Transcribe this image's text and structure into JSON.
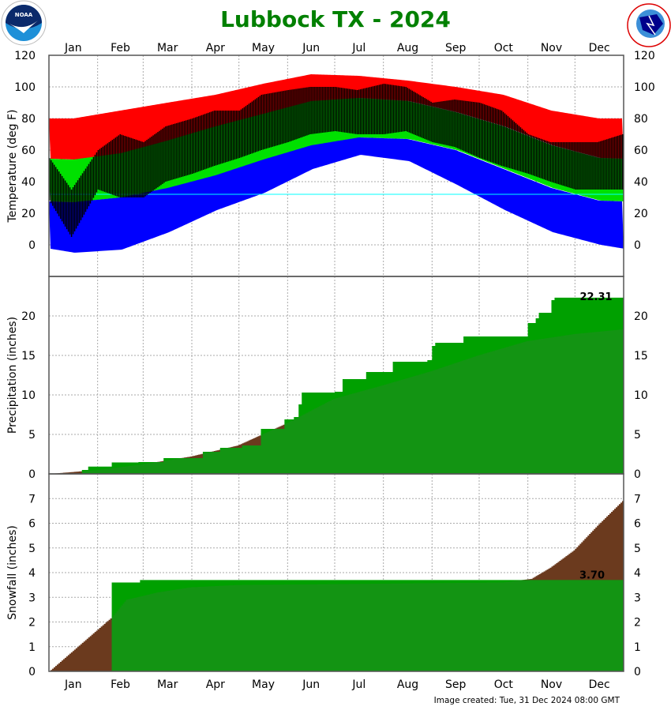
{
  "title": "Lubbock TX - 2024",
  "footer": "Image created: Tue, 31 Dec 2024 08:00 GMT",
  "logos": {
    "left": "NOAA",
    "right": "NATIONAL WEATHER SERVICE"
  },
  "colors": {
    "title": "#008000",
    "record_high_band": "#ff0000",
    "normal_band": "#00e000",
    "record_low_band": "#0000ff",
    "observed_temp": "#000000",
    "freezing_line": "#00ffff",
    "observed_accum": "#00a000",
    "normal_accum_above_observed": "#6b3a1e",
    "normal_accum_below_observed": "#228b22"
  },
  "months": [
    "Jan",
    "Feb",
    "Mar",
    "Apr",
    "May",
    "Jun",
    "Jul",
    "Aug",
    "Sep",
    "Oct",
    "Nov",
    "Dec"
  ],
  "chart_data": [
    {
      "type": "bar",
      "ylabel": "Temperature (deg F)",
      "ylim": [
        -20,
        120
      ],
      "yticks": [
        0,
        20,
        40,
        60,
        80,
        100,
        120
      ],
      "grid": true,
      "x_unit": "day of year 2024",
      "freezing_line": 32,
      "record_high_monthly": [
        80,
        85,
        90,
        95,
        102,
        108,
        107,
        104,
        100,
        95,
        85,
        80
      ],
      "normal_high_monthly": [
        54,
        58,
        66,
        75,
        83,
        91,
        93,
        91,
        84,
        75,
        63,
        55
      ],
      "normal_low_monthly": [
        27,
        30,
        36,
        44,
        54,
        63,
        68,
        67,
        60,
        48,
        36,
        28
      ],
      "record_low_monthly": [
        -5,
        -3,
        8,
        22,
        33,
        48,
        57,
        53,
        38,
        22,
        8,
        0
      ],
      "observed_semimonthly": {
        "dates": [
          "Jan 1",
          "Jan 15",
          "Feb 1",
          "Feb 15",
          "Mar 1",
          "Mar 15",
          "Apr 1",
          "Apr 15",
          "May 1",
          "May 15",
          "Jun 1",
          "Jun 15",
          "Jul 1",
          "Jul 15",
          "Aug 1",
          "Aug 15",
          "Sep 1",
          "Sep 15",
          "Oct 1",
          "Oct 15",
          "Nov 1",
          "Nov 15",
          "Dec 1",
          "Dec 15",
          "Dec 31"
        ],
        "high": [
          55,
          35,
          60,
          70,
          65,
          75,
          80,
          85,
          85,
          95,
          98,
          100,
          100,
          98,
          102,
          100,
          90,
          92,
          90,
          85,
          70,
          65,
          65,
          65,
          70
        ],
        "low": [
          28,
          5,
          35,
          30,
          30,
          40,
          45,
          50,
          55,
          60,
          65,
          70,
          72,
          70,
          70,
          72,
          65,
          62,
          55,
          50,
          45,
          40,
          35,
          35,
          35
        ]
      }
    },
    {
      "type": "area",
      "ylabel": "Precipitation (inches)",
      "ylim": [
        0,
        25
      ],
      "yticks": [
        0,
        5,
        10,
        15,
        20
      ],
      "grid": true,
      "observed_total_label": "22.31",
      "observed_cumulative": {
        "day": [
          1,
          3,
          22,
          26,
          41,
          58,
          74,
          99,
          110,
          124,
          136,
          151,
          157,
          160,
          162,
          183,
          188,
          203,
          220,
          242,
          245,
          247,
          265,
          306,
          311,
          313,
          321,
          323,
          366
        ],
        "value": [
          0,
          0.05,
          0.5,
          0.93,
          1.45,
          1.5,
          2.0,
          2.8,
          3.3,
          3.6,
          5.7,
          6.9,
          7.2,
          8.8,
          10.3,
          10.4,
          12.0,
          12.9,
          14.2,
          14.4,
          16.2,
          16.6,
          17.4,
          19.1,
          19.7,
          20.4,
          22.0,
          22.31,
          22.31
        ]
      },
      "normal_cumulative": {
        "day": [
          1,
          32,
          60,
          91,
          121,
          152,
          182,
          213,
          244,
          274,
          305,
          335,
          366
        ],
        "value": [
          0,
          0.5,
          1.2,
          2.2,
          3.6,
          6.4,
          9.5,
          11.2,
          13.0,
          15.0,
          16.8,
          17.7,
          18.3
        ]
      }
    },
    {
      "type": "area",
      "ylabel": "Snowfall (inches)",
      "ylim": [
        0,
        8
      ],
      "yticks": [
        0,
        1,
        2,
        3,
        4,
        5,
        6,
        7
      ],
      "grid": true,
      "observed_total_label": "3.70",
      "observed_cumulative": {
        "day": [
          1,
          40,
          41,
          58,
          59,
          366
        ],
        "value": [
          0,
          0,
          3.6,
          3.6,
          3.7,
          3.7
        ]
      },
      "normal_cumulative": {
        "day": [
          1,
          41,
          50,
          70,
          90,
          120,
          290,
          308,
          320,
          335,
          350,
          366
        ],
        "value": [
          0,
          2.2,
          2.9,
          3.2,
          3.4,
          3.5,
          3.6,
          3.75,
          4.2,
          4.9,
          5.9,
          6.9
        ]
      }
    }
  ]
}
